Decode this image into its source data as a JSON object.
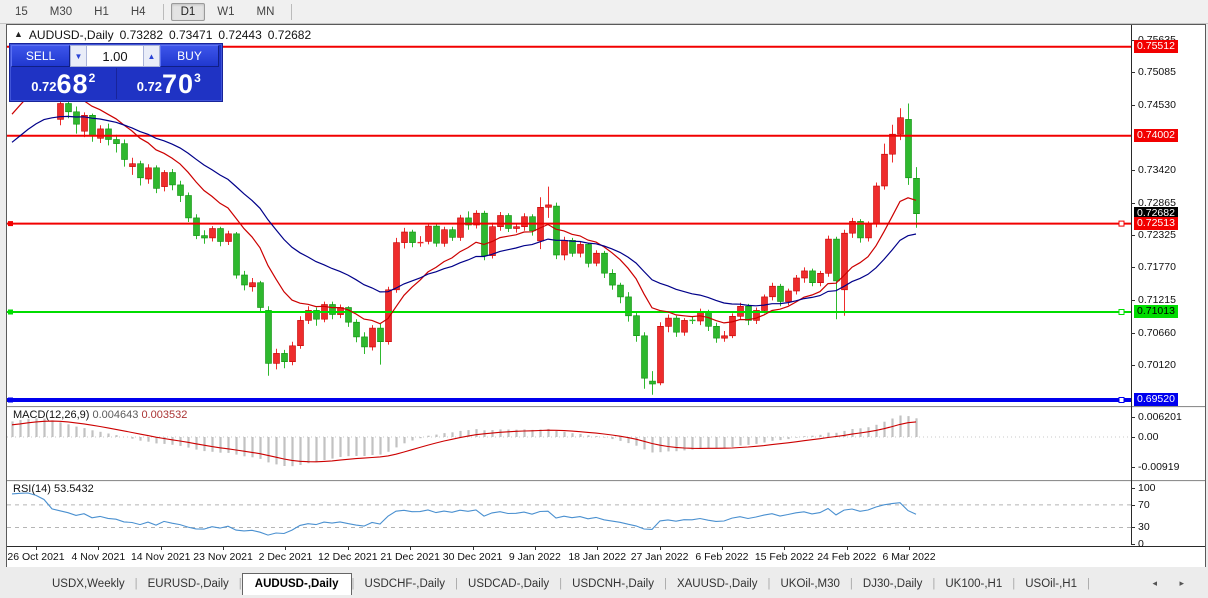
{
  "toolbar": {
    "timeframes": [
      "15",
      "M30",
      "H1",
      "H4",
      "D1",
      "W1",
      "MN"
    ],
    "active": "D1"
  },
  "header": {
    "collapse_icon": "▲",
    "symbol": "AUDUSD-,Daily",
    "open": "0.73282",
    "high": "0.73471",
    "low": "0.72443",
    "close": "0.72682"
  },
  "trade_panel": {
    "sell_label": "SELL",
    "buy_label": "BUY",
    "volume": "1.00",
    "spin_down_icon": "▼",
    "spin_up_icon": "▲",
    "sell_price": {
      "prefix": "0.72",
      "big": "68",
      "sup": "2"
    },
    "buy_price": {
      "prefix": "0.72",
      "big": "70",
      "sup": "3"
    }
  },
  "price_axis": {
    "ticks": [
      {
        "label": "0.75635",
        "price": 0.75635
      },
      {
        "label": "0.75085",
        "price": 0.75085
      },
      {
        "label": "0.74530",
        "price": 0.7453
      },
      {
        "label": "0.73420",
        "price": 0.7342
      },
      {
        "label": "0.72865",
        "price": 0.72865
      },
      {
        "label": "0.72325",
        "price": 0.72325
      },
      {
        "label": "0.71770",
        "price": 0.7177
      },
      {
        "label": "0.71215",
        "price": 0.71215
      },
      {
        "label": "0.70660",
        "price": 0.7066
      },
      {
        "label": "0.70120",
        "price": 0.7012
      }
    ],
    "badges": [
      {
        "label": "0.75512",
        "price": 0.75512,
        "bg": "#f20000",
        "fg": "#ffffff"
      },
      {
        "label": "0.74002",
        "price": 0.74002,
        "bg": "#f20000",
        "fg": "#ffffff"
      },
      {
        "label": "0.72682",
        "price": 0.72682,
        "bg": "#000000",
        "fg": "#ffffff"
      },
      {
        "label": "0.72513",
        "price": 0.72513,
        "bg": "#f20000",
        "fg": "#ffffff"
      },
      {
        "label": "0.71013",
        "price": 0.71013,
        "bg": "#00dd00",
        "fg": "#000000"
      },
      {
        "label": "0.69520",
        "price": 0.6952,
        "bg": "#0000ee",
        "fg": "#ffffff"
      }
    ]
  },
  "macd_axis": [
    {
      "label": "0.006201",
      "value": 0.006201
    },
    {
      "label": "0.00",
      "value": 0
    },
    {
      "label": "-0.00919",
      "value": -0.00919
    }
  ],
  "rsi_axis": [
    {
      "label": "100",
      "value": 100
    },
    {
      "label": "70",
      "value": 70
    },
    {
      "label": "30",
      "value": 30
    },
    {
      "label": "0",
      "value": 0
    }
  ],
  "indicators": {
    "macd": {
      "name": "MACD(12,26,9)",
      "value1": "0.004643",
      "value2": "0.003532"
    },
    "rsi": {
      "name": "RSI(14)",
      "value": "53.5432"
    }
  },
  "dates": [
    "26 Oct 2021",
    "4 Nov 2021",
    "14 Nov 2021",
    "23 Nov 2021",
    "2 Dec 2021",
    "12 Dec 2021",
    "21 Dec 2021",
    "30 Dec 2021",
    "9 Jan 2022",
    "18 Jan 2022",
    "27 Jan 2022",
    "6 Feb 2022",
    "15 Feb 2022",
    "24 Feb 2022",
    "6 Mar 2022"
  ],
  "tabs": {
    "items": [
      "USDX,Weekly",
      "EURUSD-,Daily",
      "AUDUSD-,Daily",
      "USDCHF-,Daily",
      "USDCAD-,Daily",
      "USDCNH-,Daily",
      "XAUUSD-,Daily",
      "UKOil-,M30",
      "DJ30-,Daily",
      "UK100-,H1",
      "USOil-,H1"
    ],
    "active_index": 2,
    "scroll_icons": "◂ ▸"
  },
  "chart_data": {
    "type": "candlestick",
    "title": "AUDUSD-,Daily",
    "symbol": "AUDUSD-",
    "timeframe": "Daily",
    "current": {
      "open": 0.73282,
      "high": 0.73471,
      "low": 0.72443,
      "close": 0.72682,
      "bid": 0.72682,
      "ask": 0.72703
    },
    "y_axis_range": [
      0.6915,
      0.7578
    ],
    "colors": {
      "up": "#ee2c2c",
      "down": "#2eb82e",
      "up_stroke": "#c40000",
      "down_stroke": "#0e8f0e",
      "background": "#ffffff"
    },
    "hlines": [
      {
        "price": 0.75512,
        "color": "#f20000",
        "width": 2,
        "handles": false
      },
      {
        "price": 0.74002,
        "color": "#f20000",
        "width": 2,
        "handles": false
      },
      {
        "price": 0.72513,
        "color": "#f20000",
        "width": 2,
        "handles": true
      },
      {
        "price": 0.71013,
        "color": "#00dd00",
        "width": 2,
        "handles": true
      },
      {
        "price": 0.6952,
        "color": "#0000ee",
        "width": 4,
        "handles": true
      }
    ],
    "moving_averages": [
      {
        "type": "EMA",
        "period": 12,
        "color": "#cc0000"
      },
      {
        "type": "EMA",
        "period": 26,
        "color": "#000089"
      }
    ],
    "sub_indicators": {
      "macd": {
        "fast": 12,
        "slow": 26,
        "signal": 9,
        "histogram_color": "#c2c2c2",
        "signal_color": "#cc0000",
        "main": 0.004643,
        "signal_value": 0.003532
      },
      "rsi": {
        "period": 14,
        "color": "#4a90d0",
        "levels": [
          70,
          30
        ],
        "value": 53.5432
      }
    },
    "candles_ohlc": [
      [
        0.7495,
        0.7522,
        0.7488,
        0.7512
      ],
      [
        0.7512,
        0.7541,
        0.7505,
        0.7536
      ],
      [
        0.7536,
        0.7551,
        0.7528,
        0.7548
      ],
      [
        0.7548,
        0.7552,
        0.7526,
        0.7538
      ],
      [
        0.7538,
        0.7545,
        0.7508,
        0.752
      ],
      [
        0.752,
        0.7525,
        0.7458,
        0.7468
      ],
      [
        0.7428,
        0.7458,
        0.7418,
        0.7455
      ],
      [
        0.7455,
        0.7462,
        0.743,
        0.7441
      ],
      [
        0.7441,
        0.745,
        0.7404,
        0.742
      ],
      [
        0.7408,
        0.744,
        0.7398,
        0.7435
      ],
      [
        0.7435,
        0.7438,
        0.739,
        0.74
      ],
      [
        0.7396,
        0.7418,
        0.7388,
        0.7412
      ],
      [
        0.7412,
        0.7421,
        0.7384,
        0.7394
      ],
      [
        0.7394,
        0.7402,
        0.7372,
        0.7387
      ],
      [
        0.7387,
        0.7394,
        0.7348,
        0.736
      ],
      [
        0.7348,
        0.7363,
        0.7334,
        0.7353
      ],
      [
        0.7353,
        0.7358,
        0.7316,
        0.7329
      ],
      [
        0.7327,
        0.7352,
        0.7319,
        0.7346
      ],
      [
        0.7346,
        0.735,
        0.7303,
        0.7311
      ],
      [
        0.7314,
        0.7342,
        0.7306,
        0.7338
      ],
      [
        0.7338,
        0.7344,
        0.7308,
        0.7317
      ],
      [
        0.7317,
        0.7324,
        0.7288,
        0.7299
      ],
      [
        0.7299,
        0.7304,
        0.7254,
        0.7261
      ],
      [
        0.7261,
        0.7267,
        0.7225,
        0.7231
      ],
      [
        0.7231,
        0.724,
        0.7217,
        0.7227
      ],
      [
        0.7227,
        0.7247,
        0.7221,
        0.7243
      ],
      [
        0.7243,
        0.7246,
        0.7213,
        0.7221
      ],
      [
        0.7221,
        0.7239,
        0.7215,
        0.7234
      ],
      [
        0.7234,
        0.7237,
        0.7158,
        0.7164
      ],
      [
        0.7164,
        0.7171,
        0.7138,
        0.7147
      ],
      [
        0.7144,
        0.7159,
        0.7136,
        0.7151
      ],
      [
        0.7151,
        0.7154,
        0.7103,
        0.7109
      ],
      [
        0.7104,
        0.7111,
        0.6993,
        0.7014
      ],
      [
        0.7014,
        0.7039,
        0.7004,
        0.7031
      ],
      [
        0.7031,
        0.7037,
        0.7006,
        0.7017
      ],
      [
        0.7017,
        0.7051,
        0.7011,
        0.7044
      ],
      [
        0.7044,
        0.7094,
        0.7039,
        0.7087
      ],
      [
        0.7087,
        0.7111,
        0.7081,
        0.7104
      ],
      [
        0.7104,
        0.7109,
        0.7078,
        0.7089
      ],
      [
        0.7089,
        0.7119,
        0.7084,
        0.7114
      ],
      [
        0.7114,
        0.7119,
        0.7089,
        0.7097
      ],
      [
        0.7097,
        0.7114,
        0.7091,
        0.7109
      ],
      [
        0.7109,
        0.7111,
        0.7076,
        0.7084
      ],
      [
        0.7084,
        0.7089,
        0.705,
        0.7059
      ],
      [
        0.7059,
        0.7067,
        0.703,
        0.7042
      ],
      [
        0.7042,
        0.7079,
        0.7036,
        0.7074
      ],
      [
        0.7074,
        0.7081,
        0.7012,
        0.7051
      ],
      [
        0.7051,
        0.7144,
        0.7046,
        0.7139
      ],
      [
        0.7139,
        0.7227,
        0.7134,
        0.7219
      ],
      [
        0.7219,
        0.7244,
        0.7209,
        0.7237
      ],
      [
        0.7237,
        0.7241,
        0.7211,
        0.7219
      ],
      [
        0.7219,
        0.723,
        0.7212,
        0.7221
      ],
      [
        0.7221,
        0.7252,
        0.7216,
        0.7247
      ],
      [
        0.7247,
        0.7251,
        0.7212,
        0.7218
      ],
      [
        0.7218,
        0.7246,
        0.7212,
        0.7241
      ],
      [
        0.7241,
        0.7246,
        0.7222,
        0.7228
      ],
      [
        0.7228,
        0.7266,
        0.7222,
        0.7261
      ],
      [
        0.7261,
        0.7272,
        0.7241,
        0.7249
      ],
      [
        0.7249,
        0.7274,
        0.7243,
        0.7269
      ],
      [
        0.7269,
        0.7273,
        0.7189,
        0.7197
      ],
      [
        0.7197,
        0.7253,
        0.7192,
        0.7246
      ],
      [
        0.7246,
        0.7271,
        0.7239,
        0.7265
      ],
      [
        0.7265,
        0.7269,
        0.7237,
        0.7243
      ],
      [
        0.7243,
        0.725,
        0.7236,
        0.7246
      ],
      [
        0.7246,
        0.7269,
        0.7239,
        0.7263
      ],
      [
        0.7263,
        0.7267,
        0.7231,
        0.7239
      ],
      [
        0.7222,
        0.7296,
        0.7208,
        0.7279
      ],
      [
        0.7279,
        0.7314,
        0.7261,
        0.7283
      ],
      [
        0.7281,
        0.7287,
        0.7191,
        0.7198
      ],
      [
        0.7198,
        0.7229,
        0.7189,
        0.7223
      ],
      [
        0.7223,
        0.7227,
        0.7195,
        0.7201
      ],
      [
        0.7201,
        0.7221,
        0.7194,
        0.7216
      ],
      [
        0.7216,
        0.7219,
        0.7177,
        0.7184
      ],
      [
        0.7184,
        0.7206,
        0.7179,
        0.7201
      ],
      [
        0.7201,
        0.7205,
        0.7159,
        0.7167
      ],
      [
        0.7167,
        0.7174,
        0.7139,
        0.7147
      ],
      [
        0.7147,
        0.7151,
        0.7116,
        0.7127
      ],
      [
        0.7127,
        0.7135,
        0.7085,
        0.7095
      ],
      [
        0.7095,
        0.7103,
        0.7051,
        0.7061
      ],
      [
        0.7061,
        0.7067,
        0.6971,
        0.6989
      ],
      [
        0.6984,
        0.7001,
        0.6961,
        0.6979
      ],
      [
        0.6981,
        0.7084,
        0.6977,
        0.7077
      ],
      [
        0.7077,
        0.7097,
        0.7067,
        0.7091
      ],
      [
        0.7091,
        0.7095,
        0.7059,
        0.7067
      ],
      [
        0.7067,
        0.7091,
        0.7061,
        0.7087
      ],
      [
        0.7087,
        0.7093,
        0.7081,
        0.7086
      ],
      [
        0.7086,
        0.7107,
        0.7079,
        0.7102
      ],
      [
        0.7102,
        0.7105,
        0.7069,
        0.7077
      ],
      [
        0.7077,
        0.7083,
        0.7049,
        0.7057
      ],
      [
        0.7057,
        0.7069,
        0.7051,
        0.7061
      ],
      [
        0.7061,
        0.7099,
        0.7057,
        0.7094
      ],
      [
        0.7094,
        0.7117,
        0.7089,
        0.7111
      ],
      [
        0.7111,
        0.7115,
        0.7079,
        0.7087
      ],
      [
        0.7087,
        0.7109,
        0.7081,
        0.7104
      ],
      [
        0.7104,
        0.7131,
        0.7099,
        0.7127
      ],
      [
        0.7127,
        0.7151,
        0.7121,
        0.7145
      ],
      [
        0.7145,
        0.7149,
        0.7111,
        0.7119
      ],
      [
        0.7119,
        0.7141,
        0.7113,
        0.7137
      ],
      [
        0.7137,
        0.7164,
        0.7131,
        0.7159
      ],
      [
        0.7159,
        0.7177,
        0.7151,
        0.7171
      ],
      [
        0.7171,
        0.7175,
        0.7145,
        0.7151
      ],
      [
        0.7151,
        0.7171,
        0.7145,
        0.7167
      ],
      [
        0.7167,
        0.7231,
        0.7161,
        0.7225
      ],
      [
        0.7225,
        0.7229,
        0.7089,
        0.7154
      ],
      [
        0.7139,
        0.7241,
        0.7095,
        0.7235
      ],
      [
        0.7235,
        0.7261,
        0.7227,
        0.7255
      ],
      [
        0.7255,
        0.7259,
        0.7219,
        0.7227
      ],
      [
        0.7227,
        0.7255,
        0.7221,
        0.7251
      ],
      [
        0.7251,
        0.7321,
        0.7245,
        0.7315
      ],
      [
        0.7315,
        0.7387,
        0.7309,
        0.7369
      ],
      [
        0.7369,
        0.7419,
        0.7355,
        0.7403
      ],
      [
        0.7403,
        0.7447,
        0.7393,
        0.7431
      ],
      [
        0.7428,
        0.7455,
        0.7317,
        0.7329
      ],
      [
        0.73282,
        0.73471,
        0.72443,
        0.72682
      ]
    ]
  }
}
